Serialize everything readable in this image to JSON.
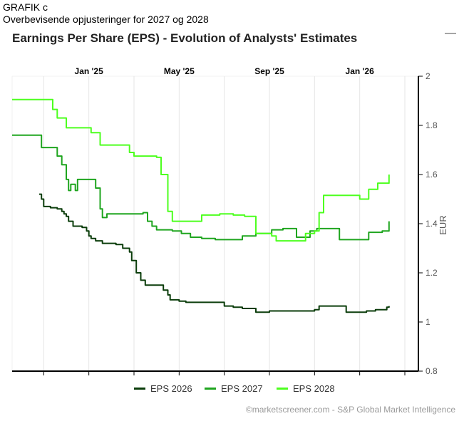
{
  "caption": {
    "line1": "GRAFIK c",
    "line2": "Overbevisende opjusteringer for 2027 og 2028"
  },
  "menu_icon": "minus-icon",
  "credit": "©marketscreener.com - S&P Global Market Intelligence",
  "chart_data": {
    "type": "line",
    "title": "Earnings Per Share (EPS) - Evolution of Analysts' Estimates",
    "xlabel": "",
    "ylabel": "EUR",
    "x_ticks": [
      "Jan '25",
      "May '25",
      "Sep '25",
      "Jan '26"
    ],
    "x_tick_months": [
      9,
      13,
      17,
      21
    ],
    "xlim": [
      5.6,
      23.6
    ],
    "ylim": [
      0.8,
      2
    ],
    "y_ticks": [
      "0.8",
      "1",
      "1.2",
      "1.4",
      "1.6",
      "1.8",
      "2"
    ],
    "y_axis_position": "right",
    "legend_position": "bottom",
    "x_unit": "months since Apr 2024",
    "series": [
      {
        "name": "EPS 2026",
        "color": "#0b3d0b",
        "points": [
          [
            6.8,
            1.52
          ],
          [
            6.9,
            1.5
          ],
          [
            7.0,
            1.47
          ],
          [
            7.3,
            1.465
          ],
          [
            7.6,
            1.46
          ],
          [
            7.8,
            1.45
          ],
          [
            7.9,
            1.44
          ],
          [
            8.0,
            1.43
          ],
          [
            8.1,
            1.41
          ],
          [
            8.3,
            1.39
          ],
          [
            8.7,
            1.385
          ],
          [
            8.9,
            1.37
          ],
          [
            9.0,
            1.35
          ],
          [
            9.1,
            1.34
          ],
          [
            9.3,
            1.33
          ],
          [
            9.6,
            1.32
          ],
          [
            10.2,
            1.315
          ],
          [
            10.5,
            1.3
          ],
          [
            10.8,
            1.285
          ],
          [
            10.9,
            1.25
          ],
          [
            11.1,
            1.2
          ],
          [
            11.3,
            1.17
          ],
          [
            11.5,
            1.15
          ],
          [
            12.3,
            1.13
          ],
          [
            12.5,
            1.11
          ],
          [
            12.6,
            1.09
          ],
          [
            13.0,
            1.085
          ],
          [
            13.3,
            1.08
          ],
          [
            14.2,
            1.08
          ],
          [
            15.0,
            1.065
          ],
          [
            15.4,
            1.06
          ],
          [
            15.8,
            1.055
          ],
          [
            16.4,
            1.04
          ],
          [
            17.0,
            1.045
          ],
          [
            17.8,
            1.045
          ],
          [
            19.0,
            1.05
          ],
          [
            19.2,
            1.065
          ],
          [
            20.2,
            1.065
          ],
          [
            20.4,
            1.04
          ],
          [
            21.3,
            1.045
          ],
          [
            21.7,
            1.05
          ],
          [
            22.2,
            1.06
          ],
          [
            22.3,
            1.065
          ]
        ]
      },
      {
        "name": "EPS 2027",
        "color": "#1fa51f",
        "points": [
          [
            5.6,
            1.76
          ],
          [
            6.8,
            1.76
          ],
          [
            6.9,
            1.71
          ],
          [
            7.6,
            1.675
          ],
          [
            7.8,
            1.64
          ],
          [
            8.0,
            1.58
          ],
          [
            8.1,
            1.535
          ],
          [
            8.2,
            1.56
          ],
          [
            8.4,
            1.535
          ],
          [
            8.5,
            1.58
          ],
          [
            9.3,
            1.545
          ],
          [
            9.5,
            1.46
          ],
          [
            9.6,
            1.425
          ],
          [
            9.8,
            1.44
          ],
          [
            10.9,
            1.44
          ],
          [
            11.4,
            1.445
          ],
          [
            11.6,
            1.41
          ],
          [
            11.8,
            1.39
          ],
          [
            12.0,
            1.375
          ],
          [
            12.7,
            1.37
          ],
          [
            13.1,
            1.36
          ],
          [
            13.5,
            1.345
          ],
          [
            14.0,
            1.34
          ],
          [
            14.6,
            1.335
          ],
          [
            15.2,
            1.335
          ],
          [
            15.8,
            1.35
          ],
          [
            16.4,
            1.36
          ],
          [
            17.1,
            1.375
          ],
          [
            17.6,
            1.38
          ],
          [
            18.2,
            1.345
          ],
          [
            18.8,
            1.37
          ],
          [
            19.1,
            1.38
          ],
          [
            19.8,
            1.38
          ],
          [
            20.1,
            1.335
          ],
          [
            20.9,
            1.335
          ],
          [
            21.4,
            1.365
          ],
          [
            22.0,
            1.37
          ],
          [
            22.3,
            1.41
          ]
        ]
      },
      {
        "name": "EPS 2028",
        "color": "#4dff1f",
        "points": [
          [
            5.6,
            1.905
          ],
          [
            7.2,
            1.905
          ],
          [
            7.4,
            1.865
          ],
          [
            7.6,
            1.83
          ],
          [
            8.0,
            1.79
          ],
          [
            9.1,
            1.77
          ],
          [
            9.5,
            1.72
          ],
          [
            10.8,
            1.69
          ],
          [
            11.0,
            1.675
          ],
          [
            12.0,
            1.67
          ],
          [
            12.2,
            1.6
          ],
          [
            12.5,
            1.45
          ],
          [
            12.7,
            1.41
          ],
          [
            13.6,
            1.41
          ],
          [
            14.0,
            1.435
          ],
          [
            14.8,
            1.44
          ],
          [
            15.4,
            1.435
          ],
          [
            15.9,
            1.43
          ],
          [
            16.4,
            1.36
          ],
          [
            17.1,
            1.35
          ],
          [
            17.3,
            1.33
          ],
          [
            17.8,
            1.33
          ],
          [
            18.2,
            1.33
          ],
          [
            18.6,
            1.36
          ],
          [
            19.0,
            1.37
          ],
          [
            19.2,
            1.445
          ],
          [
            19.4,
            1.515
          ],
          [
            20.6,
            1.515
          ],
          [
            21.0,
            1.5
          ],
          [
            21.4,
            1.54
          ],
          [
            21.8,
            1.565
          ],
          [
            22.1,
            1.565
          ],
          [
            22.3,
            1.6
          ]
        ]
      }
    ]
  }
}
